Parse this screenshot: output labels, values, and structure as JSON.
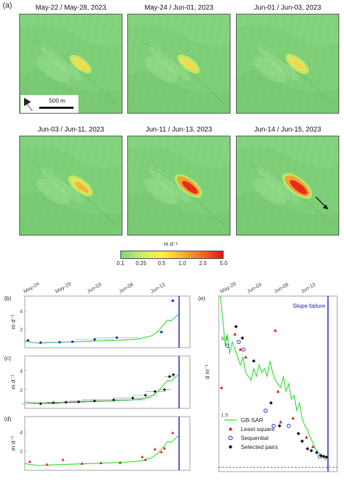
{
  "figure": {
    "panel_a_label": "(a)",
    "maps": [
      {
        "title": "May-22 / May-28, 2023",
        "intensity": 0.15
      },
      {
        "title": "May-24 / Jun-01, 2023",
        "intensity": 0.22
      },
      {
        "title": "Jun-01 / Jun-03, 2023",
        "intensity": 0.3
      },
      {
        "title": "Jun-03 / Jun-11, 2023",
        "intensity": 0.45
      },
      {
        "title": "Jun-11 / Jun-13, 2023",
        "intensity": 0.75
      },
      {
        "title": "Jun-14 / Jun-15, 2023",
        "intensity": 1.0
      }
    ],
    "scale_bar_label": "500 m",
    "colorbar": {
      "unit": "m d⁻¹",
      "ticks": [
        "0.1",
        "0.25",
        "0.5",
        "1.0",
        "2.5",
        "5.0"
      ],
      "colors": [
        "#7fd67a",
        "#c8ef6a",
        "#fff04a",
        "#f8b237",
        "#ef6a2a",
        "#e0161a"
      ],
      "colors_note": "green to red"
    },
    "colors": {
      "gbsar": "#22dd22",
      "least_square": "#e21b1b",
      "sequential": "#1f2fd0",
      "selected": "#111111",
      "failure_line": "#1a1ac8"
    }
  },
  "chart_data": [
    {
      "type": "line",
      "panel": "(b)",
      "ylabel": "m d⁻¹",
      "x_ticks": [
        "May-24",
        "May-29",
        "Jun-03",
        "Jun-08",
        "Jun-13"
      ],
      "y_ticks": [
        "2",
        "4"
      ],
      "ylim": [
        0,
        5.6
      ],
      "xlim_days": [
        0,
        26
      ],
      "failure_day": 24.3,
      "gbsar": [
        [
          0,
          0.7
        ],
        [
          2,
          0.5
        ],
        [
          4,
          0.55
        ],
        [
          6,
          0.6
        ],
        [
          8,
          0.65
        ],
        [
          10,
          0.7
        ],
        [
          12,
          0.75
        ],
        [
          14,
          0.8
        ],
        [
          16,
          0.85
        ],
        [
          18,
          0.95
        ],
        [
          20,
          1.3
        ],
        [
          21,
          1.8
        ],
        [
          22,
          2.6
        ],
        [
          22.5,
          3.0
        ],
        [
          23,
          2.9
        ],
        [
          23.5,
          3.2
        ],
        [
          24.2,
          3.6
        ]
      ],
      "points": [
        {
          "x": 0.5,
          "y": 0.8,
          "xerr": 0.5,
          "series": "sequential"
        },
        {
          "x": 2.5,
          "y": 0.55,
          "xerr": 1.5,
          "series": "sequential"
        },
        {
          "x": 5.5,
          "y": 0.6,
          "xerr": 2.5,
          "series": "sequential"
        },
        {
          "x": 7.5,
          "y": 0.65,
          "xerr": 2,
          "series": "sequential"
        },
        {
          "x": 11,
          "y": 0.9,
          "xerr": 3,
          "series": "sequential"
        },
        {
          "x": 14.5,
          "y": 1.1,
          "xerr": 3.5,
          "series": "sequential"
        },
        {
          "x": 21.5,
          "y": 1.7,
          "xerr": 0.5,
          "series": "sequential"
        },
        {
          "x": 23.3,
          "y": 5.1,
          "xerr": 0.5,
          "series": "sequential"
        }
      ]
    },
    {
      "type": "line",
      "panel": "(c)",
      "ylabel": "m d⁻¹",
      "y_ticks": [
        "2",
        "4"
      ],
      "ylim": [
        0,
        5.6
      ],
      "xlim_days": [
        0,
        26
      ],
      "failure_day": 24.3,
      "gbsar": [
        [
          0,
          0.7
        ],
        [
          2,
          0.5
        ],
        [
          4,
          0.55
        ],
        [
          6,
          0.6
        ],
        [
          8,
          0.65
        ],
        [
          10,
          0.7
        ],
        [
          12,
          0.75
        ],
        [
          14,
          0.8
        ],
        [
          16,
          0.85
        ],
        [
          18,
          0.95
        ],
        [
          20,
          1.3
        ],
        [
          21,
          1.8
        ],
        [
          22,
          2.6
        ],
        [
          22.5,
          3.0
        ],
        [
          23,
          2.9
        ],
        [
          23.5,
          3.2
        ],
        [
          24.2,
          3.6
        ]
      ],
      "points": [
        {
          "x": 2.5,
          "y": 0.5,
          "xerr": 3,
          "series": "selected"
        },
        {
          "x": 4.5,
          "y": 0.6,
          "xerr": 4,
          "series": "selected"
        },
        {
          "x": 6.5,
          "y": 0.65,
          "xerr": 3,
          "series": "selected"
        },
        {
          "x": 8.5,
          "y": 0.7,
          "xerr": 2.5,
          "series": "selected"
        },
        {
          "x": 11,
          "y": 0.8,
          "xerr": 4,
          "series": "selected"
        },
        {
          "x": 14,
          "y": 0.9,
          "xerr": 5,
          "series": "selected"
        },
        {
          "x": 17,
          "y": 1.1,
          "xerr": 3,
          "series": "selected"
        },
        {
          "x": 19,
          "y": 1.4,
          "xerr": 2,
          "series": "selected"
        },
        {
          "x": 20.5,
          "y": 1.8,
          "xerr": 1.5,
          "series": "selected"
        },
        {
          "x": 22,
          "y": 2.0,
          "xerr": 1,
          "series": "selected"
        },
        {
          "x": 22.8,
          "y": 3.4,
          "xerr": 0.8,
          "series": "selected"
        },
        {
          "x": 23.4,
          "y": 3.6,
          "xerr": 0.4,
          "series": "selected"
        }
      ]
    },
    {
      "type": "line",
      "panel": "(d)",
      "ylabel": "m d⁻¹",
      "y_ticks": [
        "2",
        "4"
      ],
      "ylim": [
        0,
        5.6
      ],
      "xlim_days": [
        0,
        26
      ],
      "failure_day": 24.3,
      "gbsar": [
        [
          0,
          0.7
        ],
        [
          2,
          0.5
        ],
        [
          4,
          0.55
        ],
        [
          6,
          0.6
        ],
        [
          8,
          0.65
        ],
        [
          10,
          0.7
        ],
        [
          12,
          0.75
        ],
        [
          14,
          0.8
        ],
        [
          16,
          0.85
        ],
        [
          18,
          0.95
        ],
        [
          20,
          1.3
        ],
        [
          21,
          1.8
        ],
        [
          22,
          2.6
        ],
        [
          22.5,
          3.0
        ],
        [
          23,
          2.9
        ],
        [
          23.5,
          3.2
        ],
        [
          24.2,
          3.6
        ]
      ],
      "points": [
        {
          "x": 0.8,
          "y": 0.9,
          "series": "least_square"
        },
        {
          "x": 3.5,
          "y": 0.6,
          "series": "least_square"
        },
        {
          "x": 6,
          "y": 1.1,
          "series": "least_square"
        },
        {
          "x": 9,
          "y": 0.7,
          "series": "least_square"
        },
        {
          "x": 12,
          "y": 0.75,
          "series": "least_square"
        },
        {
          "x": 15,
          "y": 0.8,
          "series": "least_square"
        },
        {
          "x": 18.5,
          "y": 1.4,
          "series": "least_square"
        },
        {
          "x": 19,
          "y": 1.1,
          "series": "least_square"
        },
        {
          "x": 20.5,
          "y": 2.2,
          "series": "least_square"
        },
        {
          "x": 21.5,
          "y": 1.9,
          "series": "least_square"
        },
        {
          "x": 22,
          "y": 2.3,
          "series": "least_square"
        },
        {
          "x": 23.3,
          "y": 3.9,
          "series": "least_square"
        }
      ]
    },
    {
      "type": "scatter",
      "panel": "(e)",
      "ylabel": "d m⁻¹",
      "x_ticks": [
        "May-29",
        "Jun-03",
        "Jun-08",
        "Jun-13"
      ],
      "y_ticks": [
        "3.5",
        "1.5"
      ],
      "ylim": [
        0,
        4.6
      ],
      "xlim_days": [
        4,
        26
      ],
      "failure_day": 24.3,
      "annotation": "Slope failure",
      "legend": [
        "GB-SAR",
        "Least square",
        "Sequential",
        "Selected pairs"
      ],
      "gbsar": [
        [
          4.3,
          4.6
        ],
        [
          4.8,
          3.9
        ],
        [
          5.2,
          3.3
        ],
        [
          5.6,
          3.6
        ],
        [
          6,
          3.1
        ],
        [
          6.5,
          3.4
        ],
        [
          7,
          3.2
        ],
        [
          7.5,
          3.0
        ],
        [
          8,
          2.8
        ],
        [
          8.5,
          3.0
        ],
        [
          9,
          2.6
        ],
        [
          9.5,
          2.5
        ],
        [
          10,
          2.4
        ],
        [
          10.5,
          2.7
        ],
        [
          11,
          2.5
        ],
        [
          11.5,
          2.8
        ],
        [
          12,
          2.6
        ],
        [
          12.5,
          2.7
        ],
        [
          13,
          2.5
        ],
        [
          13.5,
          2.9
        ],
        [
          14,
          2.6
        ],
        [
          14.5,
          2.4
        ],
        [
          15,
          2.3
        ],
        [
          15.5,
          2.2
        ],
        [
          16,
          2.5
        ],
        [
          16.5,
          2.1
        ],
        [
          17,
          2.3
        ],
        [
          17.5,
          1.9
        ],
        [
          18,
          2.0
        ],
        [
          18.5,
          1.6
        ],
        [
          19,
          1.8
        ],
        [
          19.5,
          1.4
        ],
        [
          20,
          1.2
        ],
        [
          20.5,
          1.1
        ],
        [
          21,
          0.9
        ],
        [
          21.5,
          0.75
        ],
        [
          22,
          0.6
        ],
        [
          22.5,
          0.5
        ],
        [
          23,
          0.45
        ],
        [
          23.5,
          0.35
        ],
        [
          24,
          0.3
        ]
      ],
      "least_square": [
        [
          4.5,
          2.2
        ],
        [
          7,
          3.6
        ],
        [
          8,
          3.2
        ],
        [
          9,
          3.0
        ],
        [
          14.5,
          3.7
        ],
        [
          15,
          2.1
        ],
        [
          15.5,
          1.3
        ],
        [
          17.8,
          1.4
        ],
        [
          20.3,
          0.9
        ],
        [
          21.5,
          0.65
        ]
      ],
      "sequential": [
        [
          5.6,
          3.3
        ],
        [
          7.7,
          3.4
        ],
        [
          8.6,
          3.2
        ],
        [
          12.7,
          1.6
        ],
        [
          14.2,
          1.2
        ],
        [
          17,
          1.2
        ],
        [
          22.8,
          0.4
        ]
      ],
      "selected": [
        [
          7.2,
          3.8
        ],
        [
          8.4,
          3.5
        ],
        [
          10.5,
          2.9
        ],
        [
          13.7,
          1.8
        ],
        [
          15.3,
          1.2
        ],
        [
          18.8,
          1.0
        ],
        [
          19.5,
          0.8
        ],
        [
          20.5,
          0.6
        ],
        [
          21.2,
          0.55
        ],
        [
          22.2,
          0.5
        ],
        [
          23,
          0.42
        ],
        [
          23.5,
          0.4
        ],
        [
          24,
          0.38
        ]
      ],
      "dashed_line_y": 0.12
    }
  ]
}
